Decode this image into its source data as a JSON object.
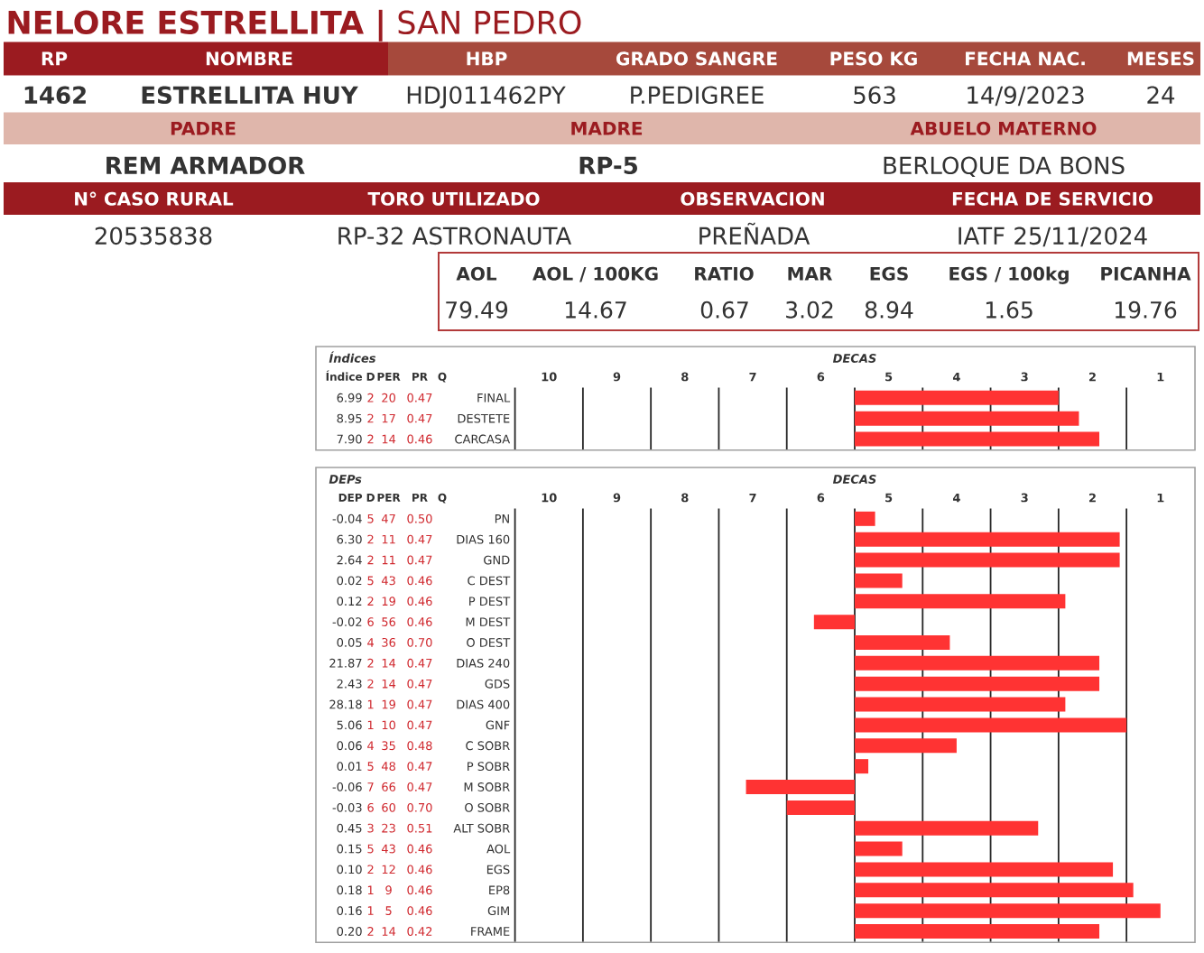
{
  "chart_data": [
    {
      "type": "other",
      "title": "**NELORE ESTRELLITA |** SAN PEDRO",
      "annotations": [
        "RP",
        "NOMBRE",
        "HBP",
        "GRADO SANGRE",
        "PESO KG",
        "FECHA NAC.",
        "MESES",
        "1462",
        "ESTRELLITA HUY",
        "HDJ011462PY",
        "P.PEDIGREE",
        "563",
        "14/9/2023",
        "24",
        "PADRE",
        "MADRE",
        "ABUELO MATERNO",
        "REM ARMADOR",
        "RP-5",
        "BERLOQUE DA BONS",
        "N° CASO RURAL",
        "TORO UTILIZADO",
        "OBSERVACION",
        "FECHA DE SERVICIO",
        "20535838",
        "RP-32 ASTRONAUTA",
        "PREÑADA",
        "IATF 25/11/2024",
        "AOL",
        "AOL / 100KG",
        "RATIO",
        "MAR",
        "EGS",
        "EGS / 100kg",
        "PICANHA",
        "79.49",
        "14.67",
        "0.67",
        "3.02",
        "8.94",
        "1.65",
        "19.76"
      ]
    },
    {
      "type": "other",
      "title": "Índices",
      "annotations": [
        "Índice",
        "D",
        "PER",
        "PR",
        "Q",
        "6.99",
        "2",
        "20",
        "0.47",
        "8.95",
        "2",
        "17",
        "0.47",
        "7.90",
        "2",
        "14",
        "0.46"
      ]
    },
    {
      "type": "bar",
      "orientation": "horizontal",
      "xlabel": "DECAS",
      "categories": [
        "FINAL",
        "DESTETE",
        "CARCASA"
      ],
      "base": [
        5.5,
        5.5,
        5.5
      ],
      "values": [
        -3.0,
        -3.3,
        -3.6
      ],
      "color": "#ff3333",
      "xlim": [
        10.5,
        0.5
      ],
      "xticks": [
        {
          "value": 10.5,
          "label": null
        },
        10,
        {
          "value": 9.5,
          "label": null
        },
        9,
        {
          "value": 8.5,
          "label": null
        },
        8,
        {
          "value": 7.5,
          "label": null
        },
        7,
        {
          "value": 6.5,
          "label": null
        },
        6,
        {
          "value": 5.5,
          "label": null
        },
        5,
        {
          "value": 4.5,
          "label": null
        },
        4,
        {
          "value": 3.5,
          "label": null
        },
        3,
        {
          "value": 2.5,
          "label": null
        },
        2,
        {
          "value": 1.5,
          "label": null
        },
        1
      ],
      "grid": "x"
    },
    {
      "type": "other",
      "title": "DEPs",
      "annotations": [
        "DEP",
        "D",
        "PER",
        "PR",
        "Q",
        "-0.04",
        "5",
        "47",
        "0.50",
        "6.30",
        "2",
        "11",
        "0.47",
        "2.64",
        "2",
        "11",
        "0.47",
        "0.02",
        "5",
        "43",
        "0.46",
        "0.12",
        "2",
        "19",
        "0.46",
        "-0.02",
        "6",
        "56",
        "0.46",
        "0.05",
        "4",
        "36",
        "0.70",
        "21.87",
        "2",
        "14",
        "0.47",
        "2.43",
        "2",
        "14",
        "0.47",
        "28.18",
        "1",
        "19",
        "0.47",
        "5.06",
        "1",
        "10",
        "0.47",
        "0.06",
        "4",
        "35",
        "0.48",
        "0.01",
        "5",
        "48",
        "0.47",
        "-0.06",
        "7",
        "66",
        "0.47",
        "-0.03",
        "6",
        "60",
        "0.70",
        "0.45",
        "3",
        "23",
        "0.51",
        "0.15",
        "5",
        "43",
        "0.46",
        "0.10",
        "2",
        "12",
        "0.46",
        "0.18",
        "1",
        "9",
        "0.46",
        "0.16",
        "1",
        "5",
        "0.46",
        "0.20",
        "2",
        "14",
        "0.42"
      ]
    },
    {
      "type": "bar",
      "orientation": "horizontal",
      "xlabel": "DECAS",
      "categories": [
        "PN",
        "DIAS 160",
        "GND",
        "C DEST",
        "P DEST",
        "M DEST",
        "O DEST",
        "DIAS 240",
        "GDS",
        "DIAS 400",
        "GNF",
        "C SOBR",
        "P SOBR",
        "M SOBR",
        "O SOBR",
        "ALT SOBR",
        "AOL",
        "EGS",
        "EP8",
        "GIM",
        "FRAME"
      ],
      "base": [
        5.5,
        5.5,
        5.5,
        5.5,
        5.5,
        5.5,
        5.5,
        5.5,
        5.5,
        5.5,
        5.5,
        5.5,
        5.5,
        5.5,
        5.5,
        5.5,
        5.5,
        5.5,
        5.5,
        5.5,
        5.5
      ],
      "values": [
        -0.3,
        -3.9,
        -3.9,
        -0.7,
        -3.1,
        0.6,
        -1.4,
        -3.6,
        -3.6,
        -3.1,
        -4.0,
        -1.5,
        -0.2,
        1.6,
        1.0,
        -2.7,
        -0.7,
        -3.8,
        -4.1,
        -4.5,
        -3.6
      ],
      "color": "#ff3333",
      "xlim": [
        10.5,
        0.5
      ],
      "xticks": [
        {
          "value": 10.5,
          "label": null
        },
        10,
        {
          "value": 9.5,
          "label": null
        },
        9,
        {
          "value": 8.5,
          "label": null
        },
        8,
        {
          "value": 7.5,
          "label": null
        },
        7,
        {
          "value": 6.5,
          "label": null
        },
        6,
        {
          "value": 5.5,
          "label": null
        },
        5,
        {
          "value": 4.5,
          "label": null
        },
        4,
        {
          "value": 3.5,
          "label": null
        },
        3,
        {
          "value": 2.5,
          "label": null
        },
        2,
        {
          "value": 1.5,
          "label": null
        },
        1
      ],
      "grid": "x"
    }
  ]
}
